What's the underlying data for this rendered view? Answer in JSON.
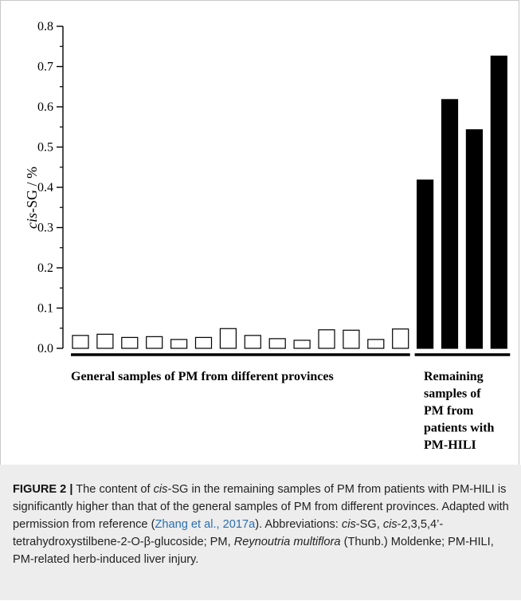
{
  "chart_data": {
    "type": "bar",
    "ylabel_parts": [
      "cis",
      "-SG / %"
    ],
    "ylim": [
      0,
      0.8
    ],
    "yticks": [
      "0.0",
      "0.1",
      "0.2",
      "0.3",
      "0.4",
      "0.5",
      "0.6",
      "0.7",
      "0.8"
    ],
    "grid": false,
    "series": [
      {
        "values": [
          0.032,
          0.035,
          0.027,
          0.029,
          0.022,
          0.027,
          0.049,
          0.032,
          0.024,
          0.02,
          0.046,
          0.045,
          0.022,
          0.048
        ],
        "fill": "#ffffff",
        "group_label_lines": [
          "General samples of PM from different provinces"
        ]
      },
      {
        "values": [
          0.418,
          0.618,
          0.543,
          0.726
        ],
        "fill": "#000000",
        "group_label_lines": [
          "Remaining",
          "samples of",
          "PM from",
          "patients with",
          "PM-HILI"
        ]
      }
    ]
  },
  "caption": {
    "label": "FIGURE 2 |",
    "segments": [
      {
        "t": " The content of ",
        "s": "n"
      },
      {
        "t": "cis",
        "s": "i"
      },
      {
        "t": "-SG in the remaining samples of PM from patients with PM-HILI is significantly higher than that of the general samples of PM from different provinces. Adapted with permission from reference (",
        "s": "n"
      },
      {
        "t": "Zhang et al., 2017a",
        "s": "l"
      },
      {
        "t": "). Abbreviations: ",
        "s": "n"
      },
      {
        "t": "cis",
        "s": "i"
      },
      {
        "t": "-SG, ",
        "s": "n"
      },
      {
        "t": "cis",
        "s": "i"
      },
      {
        "t": "-2,3,5,4’-tetrahydroxystilbene-2-O-β-glucoside; PM, ",
        "s": "n"
      },
      {
        "t": "Reynoutria multiflora",
        "s": "i"
      },
      {
        "t": " (Thunb.) Moldenke; PM-HILI, PM-related herb-induced liver injury.",
        "s": "n"
      }
    ]
  }
}
